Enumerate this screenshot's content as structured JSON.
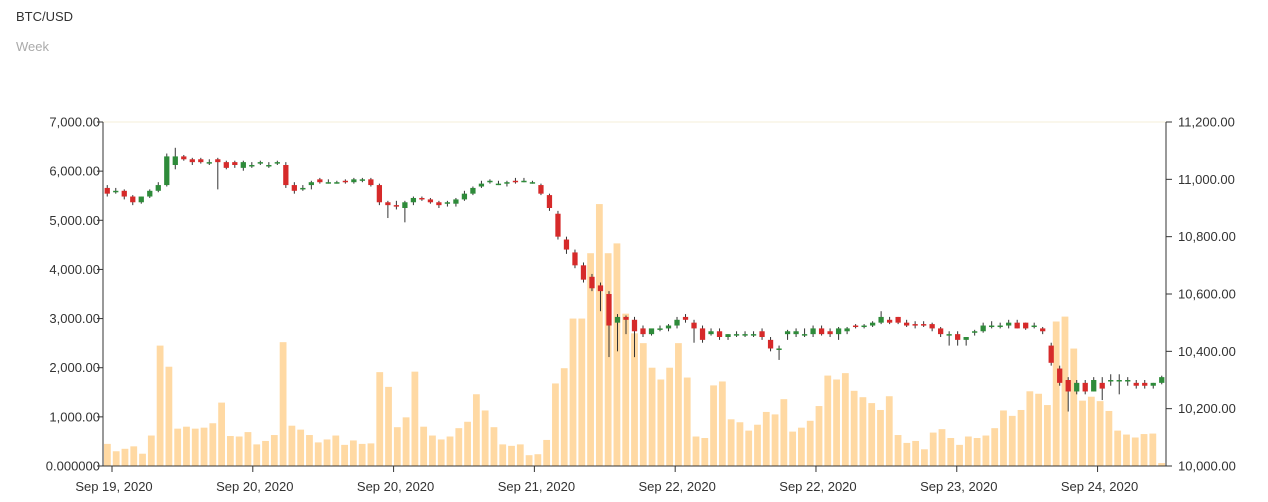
{
  "header": {
    "title": "BTC/USD",
    "subtitle": "Week"
  },
  "colors": {
    "up": "#2e8b3a",
    "down": "#d62a2a",
    "wick": "#333333",
    "volume": "#ffd9a3",
    "axis": "#333333"
  },
  "chart_data": {
    "type": "candlestick",
    "title": "BTC/USD",
    "subtitle": "Week",
    "left_axis": {
      "label": "",
      "range": [
        0,
        7000
      ],
      "ticks": [
        0,
        1000,
        2000,
        3000,
        4000,
        5000,
        6000,
        7000
      ],
      "tick_labels": [
        "0.000000",
        "1,000.00",
        "2,000.00",
        "3,000.00",
        "4,000.00",
        "5,000.00",
        "6,000.00",
        "7,000.00"
      ]
    },
    "right_axis": {
      "label": "",
      "range": [
        10000,
        11200
      ],
      "ticks": [
        10000,
        10200,
        10400,
        10600,
        10800,
        11000,
        11200
      ],
      "tick_labels": [
        "10,000.00",
        "10,200.00",
        "10,400.00",
        "10,600.00",
        "10,800.00",
        "11,000.00",
        "11,200.00"
      ]
    },
    "x_tick_labels": [
      "Sep 19, 2020",
      "Sep 20, 2020",
      "Sep 20, 2020",
      "Sep 21, 2020",
      "Sep 22, 2020",
      "Sep 22, 2020",
      "Sep 23, 2020",
      "Sep 24, 2020"
    ],
    "x_range": [
      "2020-09-19 00:00",
      "2020-09-24 12:00"
    ],
    "interval_hours": 1,
    "series": [
      {
        "name": "volume",
        "axis": "left",
        "values": [
          450,
          300,
          350,
          400,
          250,
          620,
          2450,
          2020,
          760,
          800,
          760,
          780,
          870,
          1290,
          610,
          600,
          690,
          440,
          510,
          630,
          2520,
          820,
          740,
          630,
          480,
          540,
          620,
          430,
          520,
          450,
          460,
          1910,
          1610,
          790,
          990,
          1920,
          800,
          620,
          540,
          600,
          770,
          900,
          1460,
          1130,
          790,
          440,
          410,
          440,
          220,
          240,
          530,
          1680,
          1990,
          3000,
          3000,
          4330,
          5330,
          4330,
          4530,
          3100,
          2700,
          2500,
          2000,
          1760,
          2000,
          2500,
          1800,
          600,
          570,
          1640,
          1720,
          950,
          890,
          720,
          840,
          1100,
          1050,
          1360,
          700,
          780,
          920,
          1220,
          1840,
          1760,
          1890,
          1530,
          1400,
          1280,
          1140,
          1420,
          630,
          470,
          510,
          340,
          680,
          750,
          570,
          430,
          600,
          570,
          620,
          770,
          1130,
          1020,
          1140,
          1520,
          1470,
          1240,
          2940,
          3040,
          2390,
          1330,
          1410,
          1320,
          1120,
          720,
          640,
          580,
          650,
          660,
          60
        ]
      },
      {
        "name": "open",
        "axis": "right",
        "values": [
          10970,
          10960,
          10960,
          10940,
          10920,
          10940,
          10960,
          10980,
          11050,
          11080,
          11070,
          11070,
          11060,
          11070,
          11060,
          11060,
          11040,
          11050,
          11060,
          11050,
          11060,
          11050,
          10980,
          10970,
          10980,
          11000,
          10990,
          10990,
          10995,
          10990,
          11000,
          11000,
          10980,
          10920,
          10910,
          10900,
          10920,
          10935,
          10930,
          10920,
          10920,
          10915,
          10930,
          10950,
          10975,
          10990,
          10985,
          10985,
          10995,
          10995,
          10990,
          10980,
          10945,
          10880,
          10790,
          10745,
          10700,
          10660,
          10630,
          10600,
          10500,
          10520,
          10510,
          10480,
          10460,
          10480,
          10480,
          10490,
          10520,
          10500,
          10480,
          10460,
          10470,
          10450,
          10460,
          10460,
          10460,
          10470,
          10440,
          10410,
          10460,
          10460,
          10460,
          10460,
          10480,
          10470,
          10460,
          10470,
          10490,
          10485,
          10490,
          10500,
          10510,
          10520,
          10500,
          10495,
          10495,
          10495,
          10480,
          10460,
          10460,
          10440,
          10465,
          10470,
          10490,
          10490,
          10490,
          10500,
          10500,
          10490,
          10480,
          10420,
          10340,
          10300,
          10260,
          10290,
          10260,
          10290,
          10300,
          10295,
          10300,
          10290,
          10290,
          10280,
          10290
        ]
      },
      {
        "name": "close",
        "axis": "right",
        "values": [
          10950,
          10960,
          10940,
          10920,
          10940,
          10960,
          10980,
          11080,
          11080,
          11070,
          11060,
          11060,
          11060,
          11060,
          11040,
          11050,
          11060,
          11050,
          11060,
          11050,
          11060,
          10980,
          10960,
          10970,
          10990,
          10990,
          10990,
          10990,
          10990,
          11000,
          11000,
          10980,
          10920,
          10910,
          10905,
          10920,
          10935,
          10930,
          10920,
          10910,
          10920,
          10930,
          10950,
          10970,
          10985,
          10995,
          10985,
          10990,
          10990,
          10995,
          10990,
          10950,
          10900,
          10800,
          10755,
          10700,
          10650,
          10620,
          10610,
          10490,
          10520,
          10510,
          10470,
          10460,
          10480,
          10480,
          10490,
          10510,
          10510,
          10480,
          10440,
          10470,
          10450,
          10460,
          10460,
          10460,
          10460,
          10450,
          10410,
          10410,
          10470,
          10470,
          10460,
          10480,
          10460,
          10460,
          10480,
          10480,
          10485,
          10490,
          10500,
          10520,
          10500,
          10500,
          10490,
          10490,
          10490,
          10480,
          10460,
          10460,
          10440,
          10450,
          10470,
          10490,
          10490,
          10490,
          10500,
          10480,
          10480,
          10490,
          10470,
          10360,
          10290,
          10260,
          10290,
          10260,
          10300,
          10270,
          10300,
          10300,
          10300,
          10280,
          10280,
          10290,
          10310
        ]
      },
      {
        "name": "high",
        "axis": "right",
        "values": [
          10980,
          10970,
          10965,
          10945,
          10940,
          10965,
          10990,
          11090,
          11110,
          11085,
          11075,
          11075,
          11070,
          11075,
          11065,
          11065,
          11065,
          11060,
          11065,
          11060,
          11065,
          11060,
          10990,
          10980,
          10995,
          11005,
          11000,
          10995,
          11000,
          11005,
          11005,
          11005,
          10985,
          10925,
          10925,
          10925,
          10940,
          10940,
          10935,
          10925,
          10925,
          10935,
          10960,
          10975,
          10995,
          11000,
          10995,
          10995,
          11005,
          11005,
          10995,
          10985,
          10950,
          10890,
          10800,
          10755,
          10710,
          10670,
          10640,
          10610,
          10530,
          10525,
          10520,
          10490,
          10475,
          10490,
          10495,
          10520,
          10530,
          10510,
          10490,
          10480,
          10480,
          10460,
          10470,
          10470,
          10470,
          10480,
          10450,
          10420,
          10475,
          10480,
          10480,
          10490,
          10490,
          10480,
          10485,
          10485,
          10495,
          10495,
          10505,
          10540,
          10520,
          10520,
          10510,
          10505,
          10505,
          10500,
          10485,
          10470,
          10470,
          10450,
          10475,
          10500,
          10505,
          10500,
          10510,
          10510,
          10500,
          10500,
          10485,
          10430,
          10350,
          10310,
          10300,
          10300,
          10310,
          10310,
          10320,
          10320,
          10310,
          10300,
          10300,
          10290,
          10315
        ]
      },
      {
        "name": "low",
        "axis": "right",
        "values": [
          10940,
          10950,
          10930,
          10910,
          10915,
          10935,
          10955,
          10975,
          11035,
          11065,
          11050,
          11055,
          11050,
          10965,
          11035,
          11040,
          11030,
          11040,
          11050,
          11040,
          11050,
          10970,
          10950,
          10960,
          10965,
          10985,
          10985,
          10985,
          10985,
          10985,
          10990,
          10975,
          10910,
          10865,
          10895,
          10850,
          10910,
          10925,
          10915,
          10900,
          10905,
          10905,
          10925,
          10945,
          10970,
          10985,
          10980,
          10975,
          10985,
          10990,
          10985,
          10945,
          10890,
          10790,
          10740,
          10690,
          10640,
          10610,
          10540,
          10380,
          10400,
          10460,
          10380,
          10450,
          10455,
          10470,
          10470,
          10480,
          10500,
          10430,
          10430,
          10455,
          10440,
          10440,
          10450,
          10450,
          10450,
          10440,
          10400,
          10370,
          10440,
          10450,
          10450,
          10450,
          10455,
          10450,
          10440,
          10460,
          10480,
          10480,
          10485,
          10495,
          10495,
          10495,
          10485,
          10480,
          10485,
          10470,
          10450,
          10420,
          10420,
          10420,
          10455,
          10465,
          10480,
          10480,
          10480,
          10480,
          10475,
          10480,
          10460,
          10350,
          10280,
          10190,
          10250,
          10250,
          10260,
          10230,
          10280,
          10250,
          10280,
          10270,
          10270,
          10270,
          10285
        ]
      }
    ]
  }
}
